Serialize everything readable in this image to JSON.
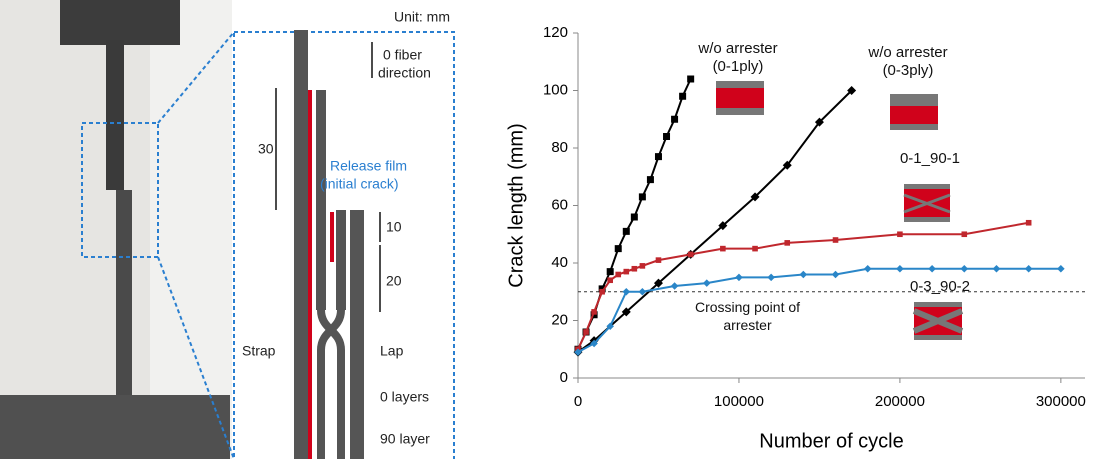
{
  "figure": {
    "unit": "Unit: mm",
    "fiber_direction": [
      "0 fiber",
      "direction"
    ],
    "dim_30": "30",
    "release_film": [
      "Release film",
      "(initial crack)"
    ],
    "dim_10": "10",
    "dim_20": "20",
    "strap": "Strap",
    "lap": "Lap",
    "zero_layers": "0 layers",
    "ninety_layer": "90 layer"
  },
  "chart_data": {
    "type": "line",
    "x_label": "Number of cycle",
    "y_label": "Crack length (mm)",
    "xlim": [
      0,
      315000
    ],
    "xticks": [
      0,
      100000,
      200000,
      300000
    ],
    "ylim": [
      0,
      120
    ],
    "yticks": [
      0,
      20,
      40,
      60,
      80,
      100,
      120
    ],
    "reference_line": {
      "value": 30,
      "label": "Crossing point of arrester"
    },
    "series": [
      {
        "name": "w/o arrester (0-1ply)",
        "color": "#000000",
        "marker": "square",
        "x": [
          0,
          5000,
          10000,
          15000,
          20000,
          25000,
          30000,
          35000,
          40000,
          45000,
          50000,
          55000,
          60000,
          65000,
          70000
        ],
        "values": [
          10,
          16,
          22,
          31,
          37,
          45,
          51,
          56,
          63,
          69,
          77,
          84,
          90,
          98,
          104
        ]
      },
      {
        "name": "w/o arrester (0-3ply)",
        "color": "#000000",
        "marker": "diamond",
        "x": [
          0,
          10000,
          30000,
          50000,
          70000,
          90000,
          110000,
          130000,
          150000,
          170000
        ],
        "values": [
          9,
          13,
          23,
          33,
          43,
          53,
          63,
          74,
          89,
          100
        ]
      },
      {
        "name": "0-1_90-1",
        "color": "#c0272d",
        "marker": "square",
        "x": [
          0,
          5000,
          10000,
          15000,
          20000,
          25000,
          30000,
          35000,
          40000,
          50000,
          70000,
          90000,
          110000,
          130000,
          160000,
          200000,
          240000,
          280000
        ],
        "values": [
          10,
          16,
          23,
          30,
          34,
          36,
          37,
          38,
          39,
          41,
          43,
          45,
          45,
          47,
          48,
          50,
          50,
          54
        ]
      },
      {
        "name": "0-3_90-2",
        "color": "#2a86c8",
        "marker": "diamond",
        "x": [
          0,
          10000,
          20000,
          30000,
          40000,
          60000,
          80000,
          100000,
          120000,
          140000,
          160000,
          180000,
          200000,
          220000,
          240000,
          260000,
          280000,
          300000
        ],
        "values": [
          9,
          12,
          18,
          30,
          30,
          32,
          33,
          35,
          35,
          36,
          36,
          38,
          38,
          38,
          38,
          38,
          38,
          38
        ]
      }
    ]
  }
}
